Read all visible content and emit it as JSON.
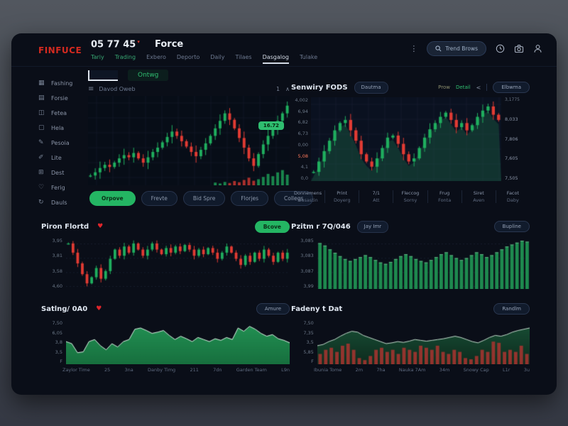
{
  "header": {
    "logo": "FINFUCE",
    "price": "05 77 45",
    "price_flag": "▾",
    "market": "Force",
    "tabs": [
      {
        "label": "Tariy",
        "cls": "green"
      },
      {
        "label": "Trading",
        "cls": "green"
      },
      {
        "label": "Exbero"
      },
      {
        "label": "Deporto"
      },
      {
        "label": "Daily"
      },
      {
        "label": "Tilaes"
      },
      {
        "label": "Dasgalog",
        "cls": "active"
      },
      {
        "label": "Tulake"
      }
    ],
    "kebab_icon": "⋮",
    "search_label": "Trend Brows"
  },
  "sidebar": {
    "items": [
      {
        "label": "Fashing",
        "icon": "▦",
        "icon_name": "gallery-icon"
      },
      {
        "label": "Forsie",
        "icon": "▤",
        "icon_name": "rows-icon"
      },
      {
        "label": "Fetea",
        "icon": "◫",
        "icon_name": "columns-icon"
      },
      {
        "label": "Hela",
        "icon": "▢",
        "icon_name": "square-icon"
      },
      {
        "label": "Pesoia",
        "icon": "✎",
        "icon_name": "pencil-icon"
      },
      {
        "label": "Lite",
        "icon": "✐",
        "icon_name": "pen-icon"
      },
      {
        "label": "Dest",
        "icon": "⊞",
        "icon_name": "grid-plus-icon"
      },
      {
        "label": "Ferig",
        "icon": "♡",
        "icon_name": "heart-outline-icon"
      },
      {
        "label": "Dauls",
        "icon": "↻",
        "icon_name": "refresh-icon"
      }
    ]
  },
  "main_panel": {
    "tab_label": "Ontwg",
    "hamburger_icon": "≡",
    "symbol_label": "Davod Oweb",
    "toolbar_right": [
      "1",
      "∧"
    ],
    "buttons": [
      {
        "label": "Orpove",
        "cls": "primary"
      },
      {
        "label": "Frevte"
      },
      {
        "label": "Bid Spre"
      },
      {
        "label": "Florjes"
      },
      {
        "label": "Collegs"
      }
    ]
  },
  "right_panel": {
    "pill_label": "Dautma",
    "link_muted": "Prow",
    "link_green": "Detail",
    "chevron_icon": "<",
    "button_label": "Elbwma",
    "stats": [
      {
        "top": "Donnemens",
        "bottom": "Gasastin"
      },
      {
        "top": "Print",
        "bottom": "Doyerg"
      },
      {
        "top": "7/1",
        "bottom": "Att"
      },
      {
        "top": "Fleccog",
        "bottom": "Sorny"
      },
      {
        "top": "Frug",
        "bottom": "Fonta"
      },
      {
        "top": "Siret",
        "bottom": "Aven"
      },
      {
        "top": "Facot",
        "bottom": "Daby"
      }
    ]
  },
  "mid_left_panel": {
    "heart": "♥",
    "button_label": "Bcove"
  },
  "mid_right_panel": {
    "pill_label": "Jay Imr",
    "button_label": "Bupline"
  },
  "bottom_left_panel": {
    "heart": "♥",
    "button_label": "Amure"
  },
  "bottom_right_panel": {
    "button_label": "Randlm"
  },
  "colors": {
    "accent_green": "#2fbe70",
    "accent_red": "#e23b33",
    "logo_red": "#d42a20"
  },
  "chart_data": [
    {
      "id": "main-candles",
      "type": "candlestick",
      "grid": "full",
      "up_color": "#1fae5e",
      "down_color": "#e23b33",
      "price_badge": "16.72",
      "closes": [
        10.2,
        10.5,
        10.9,
        11.2,
        11.0,
        11.4,
        11.8,
        12.1,
        11.9,
        12.3,
        11.8,
        11.4,
        11.9,
        12.4,
        12.8,
        13.3,
        13.8,
        14.3,
        13.9,
        13.4,
        12.9,
        12.4,
        12.0,
        12.6,
        13.2,
        13.9,
        14.6,
        15.3,
        16.0,
        15.4,
        14.6,
        13.7,
        12.8,
        11.8,
        11.1,
        12.2,
        13.1,
        13.9,
        14.5,
        15.3,
        16.0,
        16.72
      ],
      "volumes": [
        0,
        0,
        0,
        0,
        0,
        0,
        0,
        0,
        0,
        0,
        0,
        0,
        0,
        0,
        0,
        0,
        0,
        0,
        0,
        0,
        0,
        0,
        0,
        0,
        0,
        0,
        0.18,
        0.12,
        0.22,
        0.15,
        0.28,
        0.2,
        0.35,
        0.5,
        0.3,
        0.4,
        0.55,
        0.75,
        0.6,
        0.85,
        1.0,
        0.7
      ]
    },
    {
      "id": "watch-candles",
      "type": "candlestick",
      "grid": "full",
      "title": "Senwiry FODS",
      "up_color": "#1fae5e",
      "down_color": "#e23b33",
      "area_backdrop": "rgba(32,120,78,0.32)",
      "closes": [
        7.45,
        7.55,
        7.65,
        7.75,
        7.85,
        7.92,
        7.95,
        7.85,
        7.75,
        7.62,
        7.55,
        7.5,
        7.58,
        7.68,
        7.78,
        7.8,
        7.72,
        7.62,
        7.55,
        7.58,
        7.68,
        7.78,
        7.86,
        7.92,
        7.98,
        8.02,
        7.95,
        7.88,
        7.92,
        7.85,
        7.9,
        7.98,
        8.04,
        8.08,
        8.0,
        7.95
      ],
      "y_ticks_left": [
        "4,002",
        "6,94",
        "6,82",
        "6,73",
        "0,00",
        "5,08",
        "4,1",
        "0,0"
      ],
      "y_ticks_right": [
        "3,1775",
        "8,033",
        "7,806",
        "7,605",
        "7,505"
      ]
    },
    {
      "id": "pairs-candles",
      "type": "candlestick",
      "grid": "dashed",
      "title": "Piron Flortd",
      "up_color": "#1fae5e",
      "down_color": "#e23b33",
      "closes": [
        3.78,
        3.72,
        3.65,
        3.58,
        3.52,
        3.56,
        3.62,
        3.55,
        3.6,
        3.68,
        3.74,
        3.7,
        3.76,
        3.72,
        3.78,
        3.74,
        3.7,
        3.74,
        3.78,
        3.74,
        3.71,
        3.75,
        3.72,
        3.76,
        3.73,
        3.77,
        3.74,
        3.7,
        3.74,
        3.71,
        3.75,
        3.72,
        3.68,
        3.72,
        3.76,
        3.72,
        3.68,
        3.64,
        3.7,
        3.66,
        3.72,
        3.68,
        3.74,
        3.7,
        3.66,
        3.72,
        3.68,
        3.72
      ],
      "y_ticks": [
        "3,95",
        "3,81",
        "3,58",
        "4,60"
      ]
    },
    {
      "id": "volume-bars",
      "type": "bar",
      "grid": "dashed",
      "title": "Pzitm r 7Q/046",
      "color": "#1e8a4f",
      "values": [
        0.95,
        0.9,
        0.82,
        0.75,
        0.68,
        0.62,
        0.58,
        0.62,
        0.66,
        0.7,
        0.66,
        0.6,
        0.55,
        0.52,
        0.56,
        0.62,
        0.68,
        0.72,
        0.68,
        0.62,
        0.58,
        0.55,
        0.6,
        0.66,
        0.72,
        0.76,
        0.7,
        0.64,
        0.6,
        0.64,
        0.7,
        0.76,
        0.72,
        0.66,
        0.7,
        0.76,
        0.82,
        0.88,
        0.92,
        0.96,
        1.0,
        0.98
      ],
      "y_ticks": [
        "3,085",
        "3,083",
        "3,087",
        "3,99"
      ]
    },
    {
      "id": "flow-area",
      "type": "area",
      "title": "Satlng/ 0A0",
      "fill_color": "#239455",
      "fill_bottom": "#176f3e",
      "line_color": "#d7efe0",
      "values": [
        0.55,
        0.5,
        0.28,
        0.3,
        0.55,
        0.6,
        0.45,
        0.35,
        0.5,
        0.42,
        0.55,
        0.6,
        0.85,
        0.88,
        0.82,
        0.75,
        0.78,
        0.82,
        0.7,
        0.6,
        0.68,
        0.62,
        0.55,
        0.65,
        0.6,
        0.55,
        0.62,
        0.58,
        0.65,
        0.6,
        0.88,
        0.8,
        0.92,
        0.85,
        0.75,
        0.68,
        0.72,
        0.62,
        0.58,
        0.52
      ],
      "y_ticks": [
        "7,50",
        "6,05",
        "3,8",
        "3,5",
        "F"
      ],
      "x_ticks": [
        "Zaylor Time",
        "25",
        "3na",
        "Danby Timg",
        "211",
        "7dn",
        "Garden Team",
        "L9n"
      ]
    },
    {
      "id": "trend-area",
      "type": "area",
      "title": "Fadeny t Dat",
      "fill_color": "rgba(28,94,60,0.85)",
      "fill_bottom": "rgba(13,46,31,0.9)",
      "line_color": "#c2d9cb",
      "bar_color": "rgba(166,52,48,0.88)",
      "values": [
        0.45,
        0.48,
        0.55,
        0.6,
        0.68,
        0.75,
        0.8,
        0.78,
        0.7,
        0.65,
        0.6,
        0.55,
        0.5,
        0.52,
        0.55,
        0.53,
        0.56,
        0.6,
        0.58,
        0.56,
        0.58,
        0.6,
        0.62,
        0.65,
        0.68,
        0.65,
        0.6,
        0.55,
        0.52,
        0.58,
        0.65,
        0.7,
        0.68,
        0.72,
        0.78,
        0.82,
        0.85,
        0.88
      ],
      "bars": [
        0.25,
        0.35,
        0.4,
        0.3,
        0.45,
        0.5,
        0.35,
        0.15,
        0.1,
        0.2,
        0.35,
        0.4,
        0.3,
        0.35,
        0.25,
        0.4,
        0.35,
        0.3,
        0.45,
        0.4,
        0.35,
        0.45,
        0.3,
        0.25,
        0.35,
        0.3,
        0.15,
        0.12,
        0.2,
        0.35,
        0.3,
        0.55,
        0.52,
        0.3,
        0.35,
        0.3,
        0.45,
        0.25
      ],
      "y_ticks": [
        "7,50",
        "7,35",
        "3,5",
        "5,85",
        "F"
      ],
      "x_ticks": [
        "Ibunia Tome",
        "2m",
        "7ha",
        "Nauka 7Am",
        "34m",
        "Snowy Cap",
        "L1r",
        "3u"
      ]
    }
  ]
}
